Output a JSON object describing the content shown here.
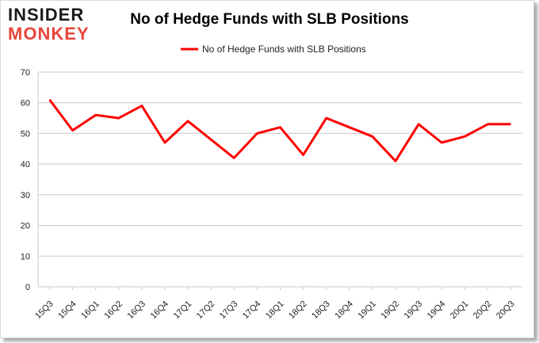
{
  "brand": {
    "line1": "INSIDER",
    "line2": "MONKEY"
  },
  "chart_data": {
    "type": "line",
    "title": "No of Hedge Funds with SLB Positions",
    "xlabel": "",
    "ylabel": "",
    "categories": [
      "15Q3",
      "15Q4",
      "16Q1",
      "16Q2",
      "16Q3",
      "16Q4",
      "17Q1",
      "17Q2",
      "17Q3",
      "17Q4",
      "18Q1",
      "18Q2",
      "18Q3",
      "18Q4",
      "19Q1",
      "19Q2",
      "19Q3",
      "19Q4",
      "20Q1",
      "20Q2",
      "20Q3"
    ],
    "series": [
      {
        "name": "No of Hedge Funds with SLB Positions",
        "color": "#ff0000",
        "values": [
          61,
          51,
          56,
          55,
          59,
          47,
          54,
          48,
          42,
          50,
          52,
          43,
          55,
          52,
          49,
          41,
          53,
          47,
          49,
          53,
          53
        ]
      }
    ],
    "ylim": [
      0,
      70
    ],
    "yticks": [
      0,
      10,
      20,
      30,
      40,
      50,
      60,
      70
    ],
    "grid": true,
    "legend": "top-center"
  }
}
